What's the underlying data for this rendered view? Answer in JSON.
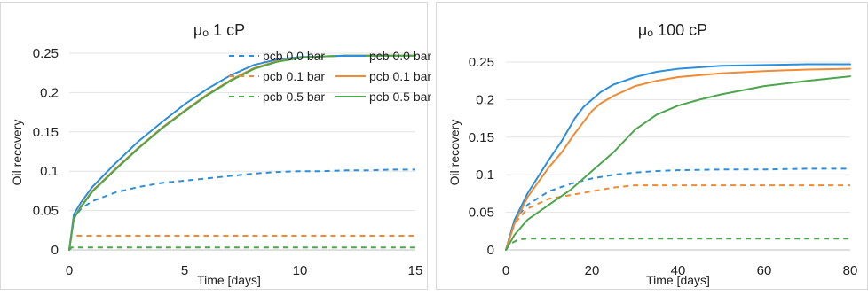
{
  "chart_data": [
    {
      "type": "line",
      "title": "μₒ 1 cP",
      "xlabel": "Time [days]",
      "ylabel": "Oil recovery",
      "xlim": [
        0,
        15
      ],
      "ylim": [
        0,
        0.25
      ],
      "xticks": [
        "0",
        "5",
        "10",
        "15"
      ],
      "yticks": [
        "0",
        "0.05",
        "0.1",
        "0.15",
        "0.2",
        "0.25"
      ],
      "legend_position": "right",
      "series": [
        {
          "name": "pcb 0.0 bar",
          "style": "dashed",
          "color": "#2b8fd9",
          "x": [
            0,
            0.2,
            0.5,
            1,
            2,
            3,
            4,
            5,
            6,
            7,
            8,
            9,
            10,
            11,
            12,
            13,
            14,
            15
          ],
          "y": [
            0,
            0.04,
            0.052,
            0.062,
            0.073,
            0.08,
            0.085,
            0.088,
            0.091,
            0.094,
            0.097,
            0.099,
            0.1,
            0.1,
            0.101,
            0.101,
            0.102,
            0.102
          ]
        },
        {
          "name": "pcb 0.1 bar",
          "style": "dashed",
          "color": "#f08a33",
          "x": [
            0,
            0.1,
            15
          ],
          "y": [
            0,
            0.018,
            0.018
          ]
        },
        {
          "name": "pcb 0.5 bar",
          "style": "dashed",
          "color": "#4ca64c",
          "x": [
            0,
            0.1,
            15
          ],
          "y": [
            0,
            0.003,
            0.003
          ]
        },
        {
          "name": "pcb 0.0 bar",
          "style": "solid",
          "color": "#2b8fd9",
          "x": [
            0,
            0.2,
            0.5,
            1,
            2,
            3,
            4,
            5,
            6,
            7,
            8,
            9,
            10,
            11,
            12,
            13,
            14,
            15
          ],
          "y": [
            0,
            0.045,
            0.06,
            0.08,
            0.11,
            0.138,
            0.162,
            0.185,
            0.205,
            0.222,
            0.235,
            0.242,
            0.245,
            0.246,
            0.247,
            0.247,
            0.247,
            0.247
          ]
        },
        {
          "name": "pcb 0.1 bar",
          "style": "solid",
          "color": "#f08a33",
          "x": [
            0,
            0.2,
            0.5,
            1,
            2,
            3,
            4,
            5,
            6,
            7,
            8,
            9,
            10,
            11,
            12,
            13,
            14,
            15
          ],
          "y": [
            0,
            0.04,
            0.055,
            0.075,
            0.103,
            0.13,
            0.155,
            0.177,
            0.198,
            0.216,
            0.231,
            0.24,
            0.244,
            0.246,
            0.247,
            0.247,
            0.247,
            0.247
          ]
        },
        {
          "name": "pcb 0.5 bar",
          "style": "solid",
          "color": "#4ca64c",
          "x": [
            0,
            0.2,
            0.5,
            1,
            2,
            3,
            4,
            5,
            6,
            7,
            8,
            9,
            10,
            11,
            12,
            13,
            14,
            15
          ],
          "y": [
            0,
            0.04,
            0.054,
            0.074,
            0.102,
            0.129,
            0.154,
            0.176,
            0.197,
            0.215,
            0.23,
            0.239,
            0.244,
            0.246,
            0.247,
            0.247,
            0.247,
            0.247
          ]
        }
      ]
    },
    {
      "type": "line",
      "title": "μₒ 100 cP",
      "xlabel": "Time [days]",
      "ylabel": "Oil recovery",
      "xlim": [
        0,
        80
      ],
      "ylim": [
        0,
        0.25
      ],
      "xticks": [
        "0",
        "20",
        "40",
        "60",
        "80"
      ],
      "yticks": [
        "0",
        "0.05",
        "0.1",
        "0.15",
        "0.2",
        "0.25"
      ],
      "series": [
        {
          "name": "pcb 0.0 bar",
          "style": "dashed",
          "color": "#2b8fd9",
          "x": [
            0,
            2,
            5,
            10,
            15,
            20,
            25,
            30,
            35,
            40,
            50,
            60,
            70,
            80
          ],
          "y": [
            0,
            0.04,
            0.06,
            0.078,
            0.088,
            0.095,
            0.1,
            0.103,
            0.105,
            0.106,
            0.107,
            0.107,
            0.108,
            0.108
          ]
        },
        {
          "name": "pcb 0.1 bar",
          "style": "dashed",
          "color": "#f08a33",
          "x": [
            0,
            2,
            5,
            10,
            15,
            20,
            25,
            30,
            35,
            40,
            50,
            60,
            70,
            80
          ],
          "y": [
            0,
            0.035,
            0.055,
            0.068,
            0.073,
            0.078,
            0.083,
            0.086,
            0.086,
            0.086,
            0.086,
            0.086,
            0.086,
            0.086
          ]
        },
        {
          "name": "pcb 0.5 bar",
          "style": "dashed",
          "color": "#4ca64c",
          "x": [
            0,
            1,
            3,
            5,
            10,
            80
          ],
          "y": [
            0,
            0.008,
            0.014,
            0.015,
            0.015,
            0.015
          ]
        },
        {
          "name": "pcb 0.0 bar",
          "style": "solid",
          "color": "#2b8fd9",
          "x": [
            0,
            2,
            5,
            10,
            13,
            16,
            18,
            20,
            22,
            25,
            30,
            35,
            40,
            50,
            60,
            70,
            80
          ],
          "y": [
            0,
            0.04,
            0.075,
            0.12,
            0.145,
            0.175,
            0.19,
            0.2,
            0.21,
            0.22,
            0.23,
            0.237,
            0.241,
            0.245,
            0.246,
            0.247,
            0.247
          ]
        },
        {
          "name": "pcb 0.1 bar",
          "style": "solid",
          "color": "#f08a33",
          "x": [
            0,
            2,
            5,
            10,
            13,
            16,
            18,
            20,
            22,
            25,
            30,
            35,
            40,
            50,
            60,
            70,
            80
          ],
          "y": [
            0,
            0.035,
            0.07,
            0.11,
            0.13,
            0.155,
            0.17,
            0.185,
            0.195,
            0.205,
            0.218,
            0.225,
            0.23,
            0.235,
            0.238,
            0.24,
            0.241
          ]
        },
        {
          "name": "pcb 0.5 bar",
          "style": "solid",
          "color": "#4ca64c",
          "x": [
            0,
            2,
            5,
            10,
            15,
            20,
            25,
            30,
            35,
            40,
            45,
            50,
            60,
            70,
            80
          ],
          "y": [
            0,
            0.02,
            0.04,
            0.06,
            0.08,
            0.105,
            0.13,
            0.16,
            0.18,
            0.192,
            0.2,
            0.207,
            0.218,
            0.225,
            0.231
          ]
        }
      ]
    }
  ]
}
